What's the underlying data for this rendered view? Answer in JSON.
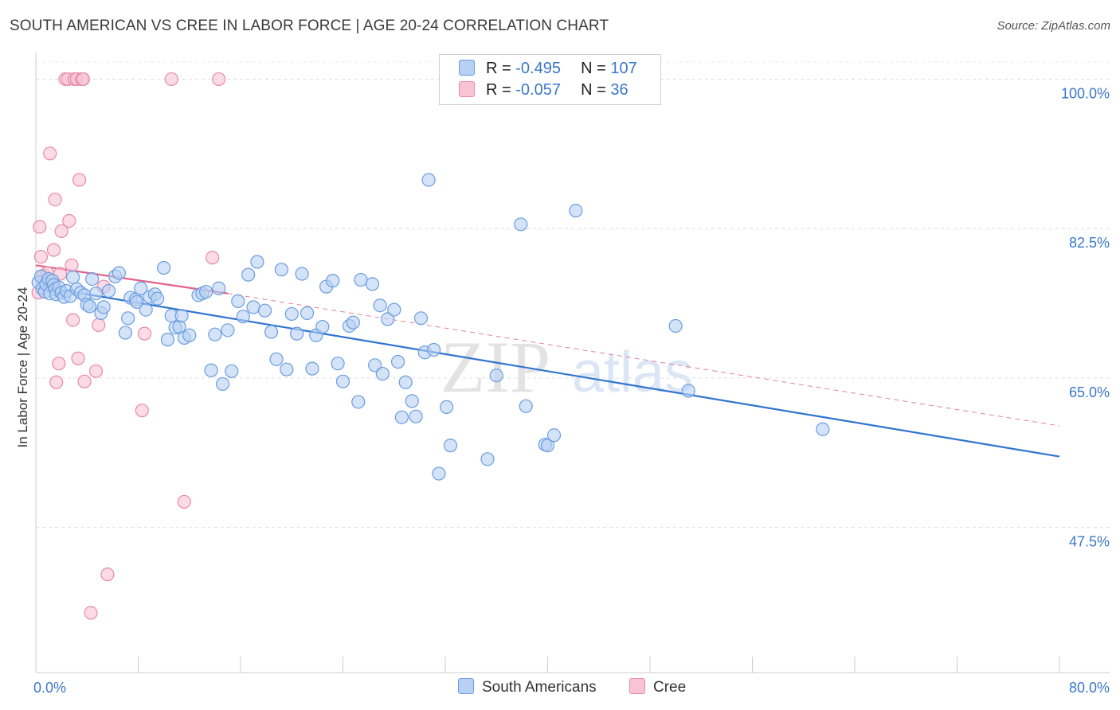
{
  "title": "SOUTH AMERICAN VS CREE IN LABOR FORCE | AGE 20-24 CORRELATION CHART",
  "source": "Source: ZipAtlas.com",
  "watermark": {
    "zip": "ZIP",
    "atlas": "atlas"
  },
  "colors": {
    "blue_fill": "#b7d0f3",
    "blue_stroke": "#6a9de0",
    "blue_line": "#2f74d0",
    "pink_fill": "#f8c3d3",
    "pink_stroke": "#e88aa8",
    "pink_line": "#e0608a",
    "tick_text": "#3b78c8",
    "grid": "#dddddd"
  },
  "legend": {
    "rows": [
      {
        "r_label": "R =",
        "r_value": "-0.495",
        "n_label": "N =",
        "n_value": "107"
      },
      {
        "r_label": "R =",
        "r_value": "-0.057",
        "n_label": "N =",
        "n_value": "36"
      }
    ]
  },
  "bottom_legend": {
    "south_americans": "South Americans",
    "cree": "Cree"
  },
  "chart_data": {
    "type": "scatter",
    "title": "SOUTH AMERICAN VS CREE IN LABOR FORCE | AGE 20-24 CORRELATION CHART",
    "xlabel": "",
    "ylabel": "In Labor Force | Age 20-24",
    "xlim": [
      0,
      80
    ],
    "ylim": [
      30.5,
      102
    ],
    "x_tick_labels": [
      "0.0%",
      "80.0%"
    ],
    "y_ticks": [
      47.5,
      65.0,
      82.5,
      100.0
    ],
    "y_tick_labels": [
      "47.5%",
      "65.0%",
      "82.5%",
      "100.0%"
    ],
    "grid": true,
    "legend_position": "top-center",
    "series": [
      {
        "name": "South Americans",
        "color": "#6a9de0",
        "trend": {
          "x": [
            0,
            80
          ],
          "y": [
            75.8,
            55.8
          ],
          "style": "solid"
        },
        "points": [
          [
            0.2,
            76.2
          ],
          [
            0.4,
            76.9
          ],
          [
            0.5,
            75.5
          ],
          [
            0.7,
            75.1
          ],
          [
            0.8,
            76.0
          ],
          [
            1.0,
            76.6
          ],
          [
            1.1,
            74.9
          ],
          [
            1.3,
            76.4
          ],
          [
            1.4,
            75.9
          ],
          [
            1.5,
            75.4
          ],
          [
            1.6,
            74.8
          ],
          [
            1.8,
            75.6
          ],
          [
            2.0,
            75.0
          ],
          [
            2.2,
            74.5
          ],
          [
            2.4,
            75.2
          ],
          [
            2.7,
            74.6
          ],
          [
            2.9,
            76.8
          ],
          [
            3.2,
            75.4
          ],
          [
            3.5,
            75.0
          ],
          [
            3.8,
            74.7
          ],
          [
            4.0,
            73.6
          ],
          [
            4.2,
            73.4
          ],
          [
            4.4,
            76.6
          ],
          [
            4.7,
            74.9
          ],
          [
            5.1,
            72.6
          ],
          [
            5.3,
            73.3
          ],
          [
            5.7,
            75.2
          ],
          [
            6.2,
            76.9
          ],
          [
            6.5,
            77.3
          ],
          [
            7.0,
            70.3
          ],
          [
            7.2,
            72.0
          ],
          [
            7.4,
            74.4
          ],
          [
            7.8,
            74.2
          ],
          [
            7.9,
            73.9
          ],
          [
            8.2,
            75.5
          ],
          [
            8.6,
            73.0
          ],
          [
            8.9,
            74.5
          ],
          [
            9.3,
            74.8
          ],
          [
            9.5,
            74.3
          ],
          [
            10.0,
            77.9
          ],
          [
            10.3,
            69.5
          ],
          [
            10.6,
            72.3
          ],
          [
            10.9,
            70.9
          ],
          [
            11.2,
            71.0
          ],
          [
            11.4,
            72.3
          ],
          [
            11.6,
            69.7
          ],
          [
            12.0,
            70.0
          ],
          [
            12.7,
            74.7
          ],
          [
            13.0,
            74.9
          ],
          [
            13.3,
            75.1
          ],
          [
            13.7,
            65.9
          ],
          [
            14.0,
            70.1
          ],
          [
            14.3,
            75.5
          ],
          [
            14.6,
            64.3
          ],
          [
            15.0,
            70.6
          ],
          [
            15.3,
            65.8
          ],
          [
            15.8,
            74.0
          ],
          [
            16.2,
            72.2
          ],
          [
            16.6,
            77.1
          ],
          [
            17.0,
            73.3
          ],
          [
            17.3,
            78.6
          ],
          [
            17.9,
            72.9
          ],
          [
            18.4,
            70.4
          ],
          [
            18.8,
            67.2
          ],
          [
            19.2,
            77.7
          ],
          [
            19.6,
            66.0
          ],
          [
            20.0,
            72.5
          ],
          [
            20.4,
            70.2
          ],
          [
            20.8,
            77.2
          ],
          [
            21.2,
            72.6
          ],
          [
            21.6,
            66.1
          ],
          [
            21.9,
            70.0
          ],
          [
            22.4,
            71.0
          ],
          [
            22.7,
            75.7
          ],
          [
            23.2,
            76.4
          ],
          [
            23.6,
            66.7
          ],
          [
            24.0,
            64.6
          ],
          [
            24.5,
            71.1
          ],
          [
            24.8,
            71.5
          ],
          [
            25.2,
            62.2
          ],
          [
            25.4,
            76.5
          ],
          [
            26.3,
            76.0
          ],
          [
            26.5,
            66.5
          ],
          [
            26.9,
            73.5
          ],
          [
            27.1,
            65.5
          ],
          [
            27.5,
            71.9
          ],
          [
            28.0,
            73.0
          ],
          [
            28.3,
            66.9
          ],
          [
            28.6,
            60.4
          ],
          [
            28.9,
            64.5
          ],
          [
            29.4,
            62.3
          ],
          [
            29.7,
            60.5
          ],
          [
            30.1,
            72.0
          ],
          [
            30.4,
            68.0
          ],
          [
            30.7,
            88.2
          ],
          [
            31.1,
            68.3
          ],
          [
            31.5,
            53.8
          ],
          [
            32.1,
            61.6
          ],
          [
            32.4,
            57.1
          ],
          [
            35.3,
            55.5
          ],
          [
            36.0,
            65.3
          ],
          [
            37.9,
            83.0
          ],
          [
            38.3,
            61.7
          ],
          [
            39.8,
            57.2
          ],
          [
            40.0,
            57.1
          ],
          [
            40.5,
            58.3
          ],
          [
            42.2,
            84.6
          ],
          [
            50.0,
            71.1
          ],
          [
            51.0,
            63.5
          ],
          [
            61.5,
            59.0
          ]
        ]
      },
      {
        "name": "Cree",
        "color": "#e88aa8",
        "trend": {
          "x": [
            0,
            15
          ],
          "y": [
            78.2,
            74.9
          ],
          "style": "solid",
          "extended": {
            "x": [
              15,
              80
            ],
            "y": [
              74.9,
              59.4
            ],
            "style": "dashed"
          }
        },
        "points": [
          [
            0.2,
            75.0
          ],
          [
            0.3,
            82.7
          ],
          [
            0.4,
            79.2
          ],
          [
            0.6,
            77.0
          ],
          [
            0.9,
            77.3
          ],
          [
            1.1,
            91.3
          ],
          [
            1.2,
            76.2
          ],
          [
            1.4,
            80.0
          ],
          [
            1.5,
            85.9
          ],
          [
            1.6,
            64.5
          ],
          [
            1.8,
            66.7
          ],
          [
            1.9,
            77.2
          ],
          [
            2.0,
            82.2
          ],
          [
            2.3,
            100.0
          ],
          [
            2.5,
            100.0
          ],
          [
            2.6,
            83.4
          ],
          [
            2.8,
            78.2
          ],
          [
            2.9,
            71.8
          ],
          [
            3.0,
            100.0
          ],
          [
            3.2,
            100.0
          ],
          [
            3.3,
            67.3
          ],
          [
            3.4,
            88.2
          ],
          [
            3.6,
            100.0
          ],
          [
            3.7,
            100.0
          ],
          [
            3.8,
            64.6
          ],
          [
            4.3,
            37.5
          ],
          [
            4.7,
            65.8
          ],
          [
            4.9,
            71.2
          ],
          [
            5.3,
            75.7
          ],
          [
            5.6,
            42.0
          ],
          [
            8.3,
            61.2
          ],
          [
            8.5,
            70.2
          ],
          [
            10.6,
            100.0
          ],
          [
            11.6,
            50.5
          ],
          [
            13.8,
            79.1
          ],
          [
            14.3,
            100.0
          ]
        ]
      }
    ]
  }
}
